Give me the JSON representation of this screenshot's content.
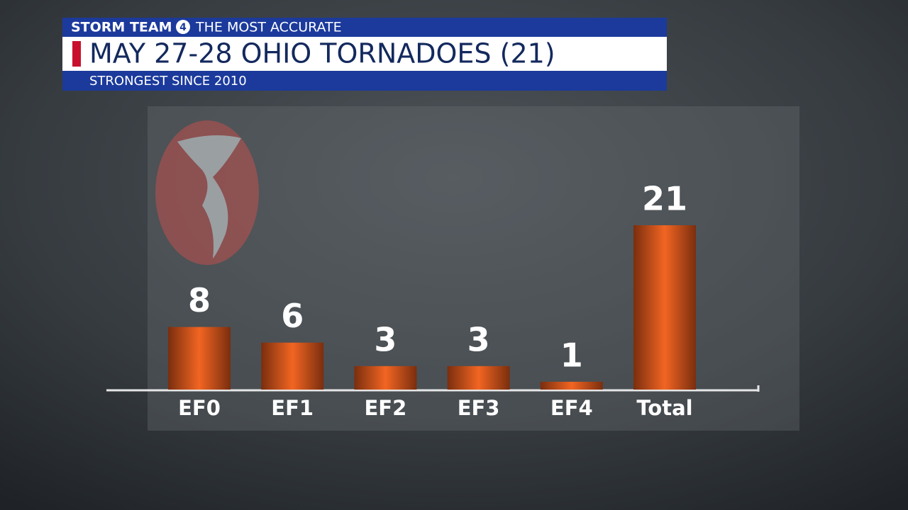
{
  "chart_data": {
    "type": "bar",
    "brand": "STORM TEAM",
    "logo": "4",
    "slogan": "THE MOST ACCURATE",
    "title": "MAY 27-28 OHIO TORNADOES (21)",
    "subtitle": "STRONGEST SINCE 2010",
    "categories": [
      "EF0",
      "EF1",
      "EF2",
      "EF3",
      "EF4",
      "Total"
    ],
    "values": [
      8,
      6,
      3,
      3,
      1,
      21
    ],
    "color": "#f26522"
  }
}
